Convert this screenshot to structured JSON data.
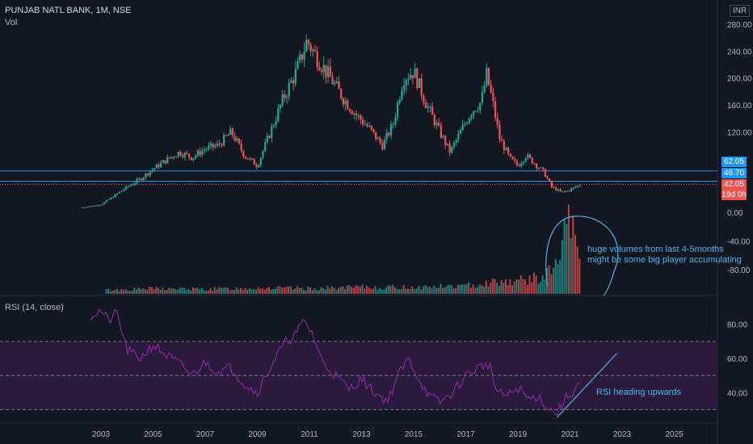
{
  "header": {
    "symbol": "PUNJAB NATL BANK, 1M, NSE",
    "volume_label": "Vol",
    "rsi_label": "RSI (14, close)",
    "currency": "INR"
  },
  "price_badges": {
    "line_upper": "62.05",
    "line_lower": "46.70",
    "current_price": "42.05",
    "countdown": "19d 0h"
  },
  "annotations": {
    "volume_note_line1": "huge volumes from last 4-5months",
    "volume_note_line2": "might be some big player accumulating",
    "rsi_note": "RSI heading upwards"
  },
  "colors": {
    "up": "#26a69a",
    "down": "#ef5350",
    "rsi_line": "#9c27b0",
    "rsi_band": "#2a1b3d",
    "annotation": "#4fb3e8",
    "price_line": "#2196f3",
    "background": "#131722"
  },
  "chart_data": [
    {
      "type": "candlestick",
      "title": "PUNJAB NATL BANK, 1M, NSE",
      "y_axis_ticks": [
        280,
        240,
        200,
        160,
        120
      ],
      "y_range": [
        25,
        285
      ],
      "x_range": [
        2002,
        2026.5
      ],
      "horizontal_lines": [
        62.05,
        46.7
      ],
      "last_price": 42.05,
      "series": [
        {
          "name": "close",
          "points": [
            [
              2002.3,
              8
            ],
            [
              2003.0,
              12
            ],
            [
              2003.5,
              25
            ],
            [
              2004.0,
              38
            ],
            [
              2004.5,
              50
            ],
            [
              2005.0,
              65
            ],
            [
              2005.5,
              78
            ],
            [
              2006.0,
              90
            ],
            [
              2006.5,
              82
            ],
            [
              2007.0,
              95
            ],
            [
              2007.5,
              100
            ],
            [
              2008.0,
              120
            ],
            [
              2008.5,
              85
            ],
            [
              2009.0,
              70
            ],
            [
              2009.5,
              120
            ],
            [
              2010.0,
              170
            ],
            [
              2010.5,
              210
            ],
            [
              2010.9,
              255
            ],
            [
              2011.3,
              230
            ],
            [
              2011.8,
              200
            ],
            [
              2012.3,
              170
            ],
            [
              2012.8,
              145
            ],
            [
              2013.3,
              125
            ],
            [
              2013.8,
              100
            ],
            [
              2014.2,
              130
            ],
            [
              2014.6,
              200
            ],
            [
              2015.0,
              210
            ],
            [
              2015.5,
              160
            ],
            [
              2016.0,
              120
            ],
            [
              2016.4,
              90
            ],
            [
              2016.8,
              120
            ],
            [
              2017.2,
              150
            ],
            [
              2017.6,
              165
            ],
            [
              2017.8,
              205
            ],
            [
              2018.0,
              170
            ],
            [
              2018.3,
              110
            ],
            [
              2018.7,
              80
            ],
            [
              2019.0,
              70
            ],
            [
              2019.3,
              85
            ],
            [
              2019.6,
              75
            ],
            [
              2020.0,
              60
            ],
            [
              2020.3,
              38
            ],
            [
              2020.7,
              30
            ],
            [
              2021.0,
              34
            ],
            [
              2021.3,
              40
            ],
            [
              2021.4,
              42.05
            ]
          ]
        }
      ]
    },
    {
      "type": "bar",
      "title": "Vol",
      "y_axis_ticks": [
        0,
        -40,
        -80
      ],
      "series": [
        {
          "points": [
            [
              2003.5,
              6
            ],
            [
              2005.0,
              8
            ],
            [
              2007.0,
              7
            ],
            [
              2009.0,
              9
            ],
            [
              2011.0,
              8
            ],
            [
              2013.0,
              10
            ],
            [
              2015.0,
              10
            ],
            [
              2017.0,
              12
            ],
            [
              2018.0,
              18
            ],
            [
              2019.0,
              20
            ],
            [
              2020.0,
              25
            ],
            [
              2020.5,
              45
            ],
            [
              2020.8,
              85
            ],
            [
              2021.0,
              110
            ],
            [
              2021.2,
              75
            ],
            [
              2021.3,
              60
            ]
          ]
        }
      ]
    },
    {
      "type": "line",
      "title": "RSI (14, close)",
      "y_axis_ticks": [
        80,
        60,
        40
      ],
      "y_range": [
        25,
        95
      ],
      "reference_lines": [
        70,
        50,
        30
      ],
      "x_ticks": [
        "2003",
        "2005",
        "2007",
        "2009",
        "2011",
        "2013",
        "2015",
        "2017",
        "2019",
        "2021",
        "2023",
        "2025"
      ],
      "series": [
        {
          "points": [
            [
              2002.6,
              85
            ],
            [
              2003.0,
              88
            ],
            [
              2003.3,
              82
            ],
            [
              2003.6,
              87
            ],
            [
              2004.0,
              65
            ],
            [
              2004.5,
              60
            ],
            [
              2005.0,
              68
            ],
            [
              2005.5,
              62
            ],
            [
              2006.0,
              57
            ],
            [
              2006.5,
              50
            ],
            [
              2007.0,
              58
            ],
            [
              2007.5,
              52
            ],
            [
              2008.0,
              55
            ],
            [
              2008.5,
              45
            ],
            [
              2009.0,
              40
            ],
            [
              2009.5,
              55
            ],
            [
              2010.0,
              68
            ],
            [
              2010.5,
              75
            ],
            [
              2010.8,
              82
            ],
            [
              2011.1,
              75
            ],
            [
              2011.5,
              58
            ],
            [
              2012.0,
              50
            ],
            [
              2012.5,
              42
            ],
            [
              2013.0,
              48
            ],
            [
              2013.5,
              40
            ],
            [
              2014.0,
              35
            ],
            [
              2014.4,
              50
            ],
            [
              2014.8,
              60
            ],
            [
              2015.2,
              48
            ],
            [
              2015.6,
              38
            ],
            [
              2016.0,
              34
            ],
            [
              2016.5,
              40
            ],
            [
              2017.0,
              50
            ],
            [
              2017.5,
              55
            ],
            [
              2017.9,
              57
            ],
            [
              2018.2,
              40
            ],
            [
              2018.6,
              38
            ],
            [
              2019.0,
              43
            ],
            [
              2019.4,
              36
            ],
            [
              2019.8,
              38
            ],
            [
              2020.2,
              30
            ],
            [
              2020.5,
              28
            ],
            [
              2020.8,
              36
            ],
            [
              2021.1,
              40
            ],
            [
              2021.4,
              47
            ]
          ]
        }
      ]
    }
  ]
}
